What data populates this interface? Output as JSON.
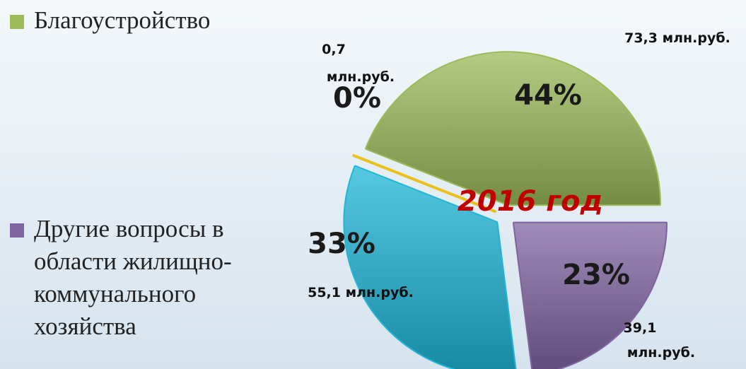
{
  "chart_data": {
    "type": "pie",
    "categories": [
      "Благоустройство",
      "Другие вопросы в области жилищно-коммунального хозяйства",
      null,
      null
    ],
    "values": [
      44,
      23,
      33,
      0
    ],
    "value_labels": [
      "44%",
      "23%",
      "33%",
      "0%"
    ],
    "amounts": [
      73.3,
      39.1,
      55.1,
      0.7
    ],
    "amount_labels": [
      "73,3 млн.руб.",
      "39,1 млн.руб.",
      "55,1 млн.руб.",
      "0,7 млн.руб."
    ],
    "colors": [
      "#9bbb59",
      "#8064a2",
      "#1fb6d8",
      "#e8c21a"
    ],
    "annotation": "2016 год"
  }
}
